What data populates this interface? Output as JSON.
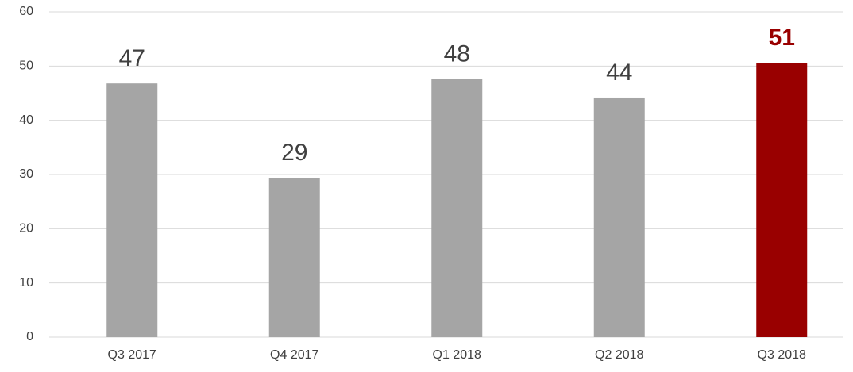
{
  "chart_data": {
    "type": "bar",
    "categories": [
      "Q3 2017",
      "Q4 2017",
      "Q1 2018",
      "Q2 2018",
      "Q3 2018"
    ],
    "values": [
      46.8,
      29.4,
      47.6,
      44.2,
      50.6
    ],
    "value_labels": [
      "47",
      "29",
      "48",
      "44",
      "51"
    ],
    "colors": [
      "#a5a5a5",
      "#a5a5a5",
      "#a5a5a5",
      "#a5a5a5",
      "#990000"
    ],
    "highlight": 4,
    "ylim": [
      0,
      60
    ],
    "yticks": [
      0,
      10,
      20,
      30,
      40,
      50,
      60
    ],
    "grid": true
  }
}
